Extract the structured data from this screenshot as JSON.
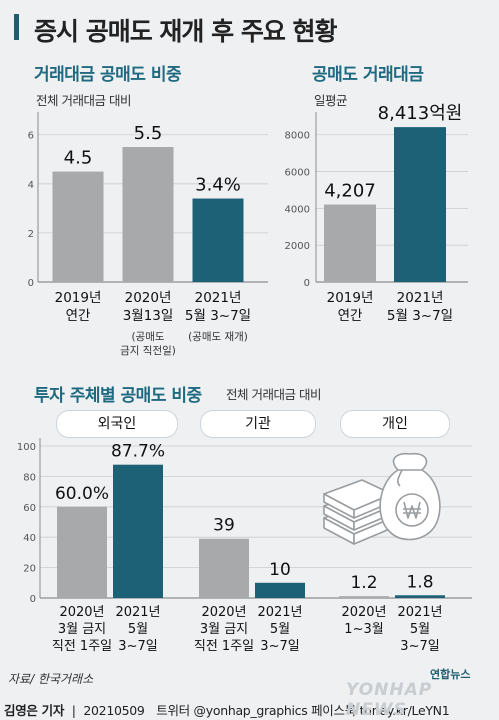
{
  "title": "증시 공매도 재개 후 주요 현황",
  "panel1": {
    "title": "거래대금 공매도 비중",
    "subtitle": "전체 거래대금 대비"
  },
  "panel2": {
    "title": "공매도 거래대금",
    "subtitle": "일평균"
  },
  "panel3": {
    "title": "투자 주체별 공매도 비중",
    "subtitle": "전체 거래대금 대비",
    "groups": [
      "외국인",
      "기관",
      "개인"
    ]
  },
  "source": "자료/ 한국거래소",
  "credit": {
    "author": "김영은 기자",
    "date": "20210509",
    "sns": "트위터 @yonhap_graphics  페이스북 tuney.kr/LeYN1"
  },
  "logo": {
    "small": "연합뉴스",
    "large": "YONHAP NEWS"
  },
  "colors": {
    "gray": "#a7a9ab",
    "teal": "#1c6176",
    "title_teal": "#1f6a80"
  },
  "icon": "money-stack-and-bag-icon",
  "chart_data": [
    {
      "type": "bar",
      "title": "거래대금 공매도 비중",
      "subtitle": "전체 거래대금 대비",
      "categories": [
        [
          "2019년",
          "연간"
        ],
        [
          "2020년",
          "3월13일"
        ],
        [
          "2021년",
          "5월 3~7일"
        ]
      ],
      "notes": [
        "",
        "(공매도\n금지 직전일)",
        "(공매도 재개)"
      ],
      "values": [
        4.5,
        5.5,
        3.4
      ],
      "labels": [
        "4.5",
        "5.5",
        "3.4%"
      ],
      "bar_colors": [
        "gray",
        "gray",
        "teal"
      ],
      "yticks": [
        0,
        2,
        4,
        6
      ],
      "ylim": [
        0,
        6.6
      ],
      "grid": true
    },
    {
      "type": "bar",
      "title": "공매도 거래대금",
      "subtitle": "일평균",
      "categories": [
        [
          "2019년",
          "연간"
        ],
        [
          "2021년",
          "5월 3~7일"
        ]
      ],
      "values": [
        4207,
        8413
      ],
      "labels": [
        "4,207",
        "8,413억원"
      ],
      "bar_colors": [
        "gray",
        "teal"
      ],
      "yticks": [
        0,
        2000,
        4000,
        6000,
        8000
      ],
      "ylim": [
        0,
        8800
      ],
      "grid": true
    },
    {
      "type": "bar",
      "title": "투자 주체별 공매도 비중",
      "subtitle": "전체 거래대금 대비",
      "groups": [
        {
          "name": "외국인",
          "categories": [
            [
              "2020년",
              "3월 금지",
              "직전 1주일"
            ],
            [
              "2021년",
              "5월",
              "3~7일"
            ]
          ],
          "values": [
            60.0,
            87.7
          ],
          "labels": [
            "60.0%",
            "87.7%"
          ]
        },
        {
          "name": "기관",
          "categories": [
            [
              "2020년",
              "3월 금지",
              "직전 1주일"
            ],
            [
              "2021년",
              "5월",
              "3~7일"
            ]
          ],
          "values": [
            39,
            10
          ],
          "labels": [
            "39",
            "10"
          ]
        },
        {
          "name": "개인",
          "categories": [
            [
              "2020년",
              "1~3월"
            ],
            [
              "2021년",
              "5월",
              "3~7일"
            ]
          ],
          "values": [
            1.2,
            1.8
          ],
          "labels": [
            "1.2",
            "1.8"
          ]
        }
      ],
      "bar_colors": [
        "gray",
        "teal"
      ],
      "yticks": [
        0,
        20,
        40,
        60,
        80,
        100
      ],
      "ylim": [
        0,
        100
      ],
      "grid": true
    }
  ]
}
